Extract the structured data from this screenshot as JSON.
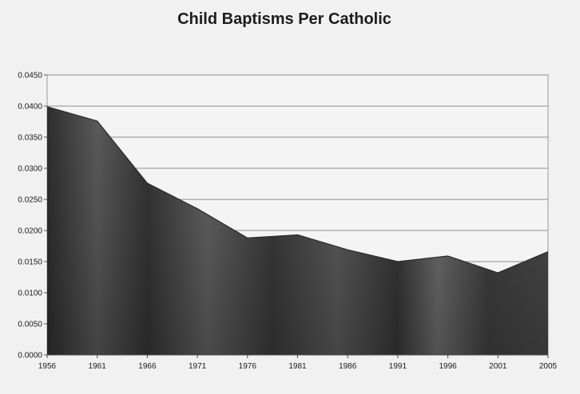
{
  "chart_data": {
    "type": "area",
    "title": "Child Baptisms Per Catholic",
    "xlabel": "",
    "ylabel": "",
    "x": [
      "1956",
      "1961",
      "1966",
      "1971",
      "1976",
      "1981",
      "1986",
      "1991",
      "1996",
      "2001",
      "2005"
    ],
    "series": [
      {
        "values": [
          0.0399,
          0.0376,
          0.0276,
          0.0235,
          0.0188,
          0.0193,
          0.0169,
          0.015,
          0.0159,
          0.0132,
          0.0166
        ]
      }
    ],
    "ylim": [
      0,
      0.045
    ],
    "y_ticks": [
      "0.0000",
      "0.0050",
      "0.0100",
      "0.0150",
      "0.0200",
      "0.0250",
      "0.0300",
      "0.0350",
      "0.0400",
      "0.0450"
    ],
    "grid": true,
    "legend": "none",
    "colors": {
      "fill": "#3c3c3c",
      "fill_light": "#6a6a6a",
      "gridline": "#8e8e8e",
      "background": "#f1f1f1"
    }
  }
}
